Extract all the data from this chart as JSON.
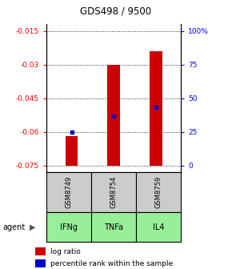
{
  "title": "GDS498 / 9500",
  "samples": [
    "GSM8749",
    "GSM8754",
    "GSM8759"
  ],
  "agents": [
    "IFNg",
    "TNFa",
    "IL4"
  ],
  "bar_bottoms": [
    -0.075,
    -0.075,
    -0.075
  ],
  "bar_tops": [
    -0.062,
    -0.03,
    -0.024
  ],
  "percentile_values": [
    -0.06,
    -0.053,
    -0.049
  ],
  "ylim_left": [
    -0.078,
    -0.012
  ],
  "yticks_left": [
    -0.075,
    -0.06,
    -0.045,
    -0.03,
    -0.015
  ],
  "yticks_right_pct": [
    0,
    25,
    50,
    75,
    100
  ],
  "pct_map": {
    "ymin": -0.075,
    "ymax": -0.015
  },
  "bar_color": "#cc0000",
  "percentile_color": "#0000cc",
  "agent_bg_color": "#99ee99",
  "sample_bg_color": "#cccccc",
  "legend_log_ratio": "log ratio",
  "legend_percentile": "percentile rank within the sample",
  "agent_label": "agent"
}
